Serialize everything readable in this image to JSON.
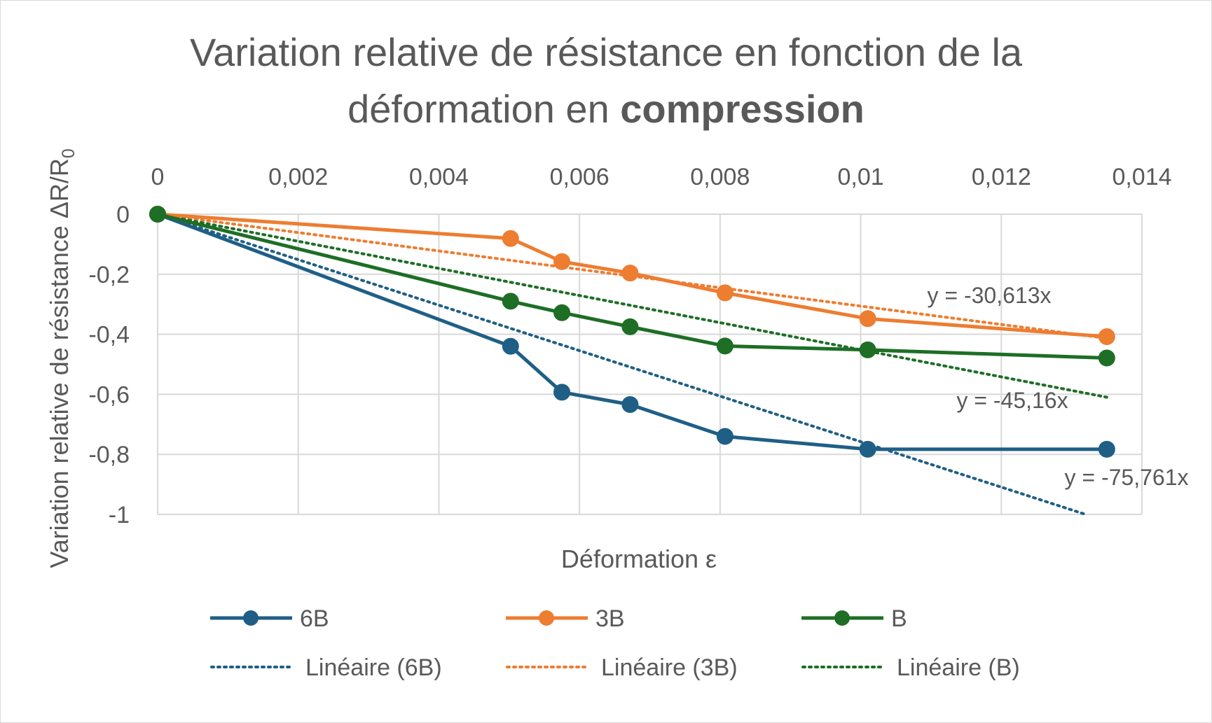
{
  "chart_data": {
    "type": "line",
    "title": {
      "line1": "Variation relative de résistance en fonction de la",
      "line2_prefix": "déformation en ",
      "line2_bold": "compression"
    },
    "xlabel": "Déformation ε",
    "ylabel": "Variation relative de résistance ΔR/R",
    "ylabel_subscript": "0",
    "xlim": [
      0,
      0.014
    ],
    "ylim": [
      -1,
      0
    ],
    "x_axis_position": "top",
    "grid": true,
    "legend_position": "bottom",
    "x_ticks": [
      0,
      0.002,
      0.004,
      0.006,
      0.008,
      0.01,
      0.012,
      0.014
    ],
    "x_tick_labels": [
      "0",
      "0,002",
      "0,004",
      "0,006",
      "0,008",
      "0,01",
      "0,012",
      "0,014"
    ],
    "y_ticks": [
      0,
      -0.2,
      -0.4,
      -0.6,
      -0.8,
      -1
    ],
    "y_tick_labels": [
      "0",
      "-0,2",
      "-0,4",
      "-0,6",
      "-0,8",
      "-1"
    ],
    "series": [
      {
        "name": "6B",
        "color": "#1f5f86",
        "x": [
          0,
          0.00502,
          0.00575,
          0.00672,
          0.00807,
          0.0101,
          0.0135
        ],
        "values": [
          0,
          -0.44,
          -0.593,
          -0.634,
          -0.74,
          -0.783,
          -0.783
        ]
      },
      {
        "name": "3B",
        "color": "#ed7d31",
        "x": [
          0,
          0.00502,
          0.00575,
          0.00672,
          0.00807,
          0.0101,
          0.0135
        ],
        "values": [
          0,
          -0.081,
          -0.158,
          -0.196,
          -0.262,
          -0.348,
          -0.408
        ]
      },
      {
        "name": "B",
        "color": "#1e6e26",
        "x": [
          0,
          0.00502,
          0.00575,
          0.00672,
          0.00807,
          0.0101,
          0.0135
        ],
        "values": [
          0,
          -0.29,
          -0.328,
          -0.375,
          -0.439,
          -0.452,
          -0.479
        ]
      }
    ],
    "trendlines": [
      {
        "name": "Linéaire (6B)",
        "series": "6B",
        "color": "#1f5f86",
        "slope": -75.761,
        "equation": "y = -75,761x"
      },
      {
        "name": "Linéaire (3B)",
        "series": "3B",
        "color": "#ed7d31",
        "slope": -30.613,
        "equation": "y = -30,613x"
      },
      {
        "name": "Linéaire (B)",
        "series": "B",
        "color": "#1e6e26",
        "slope": -45.16,
        "equation": "y = -45,16x"
      }
    ]
  }
}
